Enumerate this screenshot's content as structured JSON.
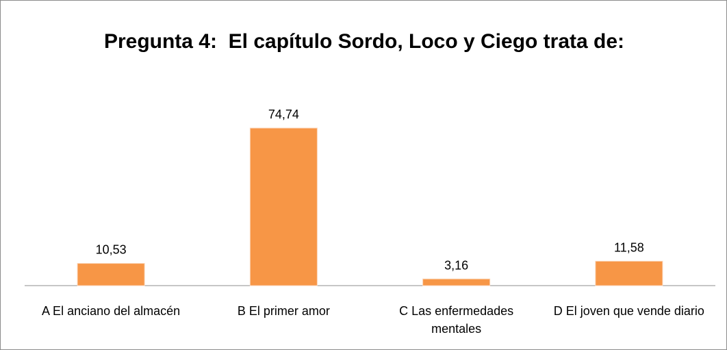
{
  "chart_data": {
    "type": "bar",
    "title": "Pregunta 4:  El capítulo Sordo, Loco y Ciego trata de:",
    "categories": [
      "A El anciano del almacén",
      "B El primer amor",
      "C Las enfermedades mentales",
      "D El joven que vende diario"
    ],
    "values": [
      10.53,
      74.74,
      3.16,
      11.58
    ],
    "value_labels": [
      "10,53",
      "74,74",
      "3,16",
      "11,58"
    ],
    "color": "#f79646"
  }
}
